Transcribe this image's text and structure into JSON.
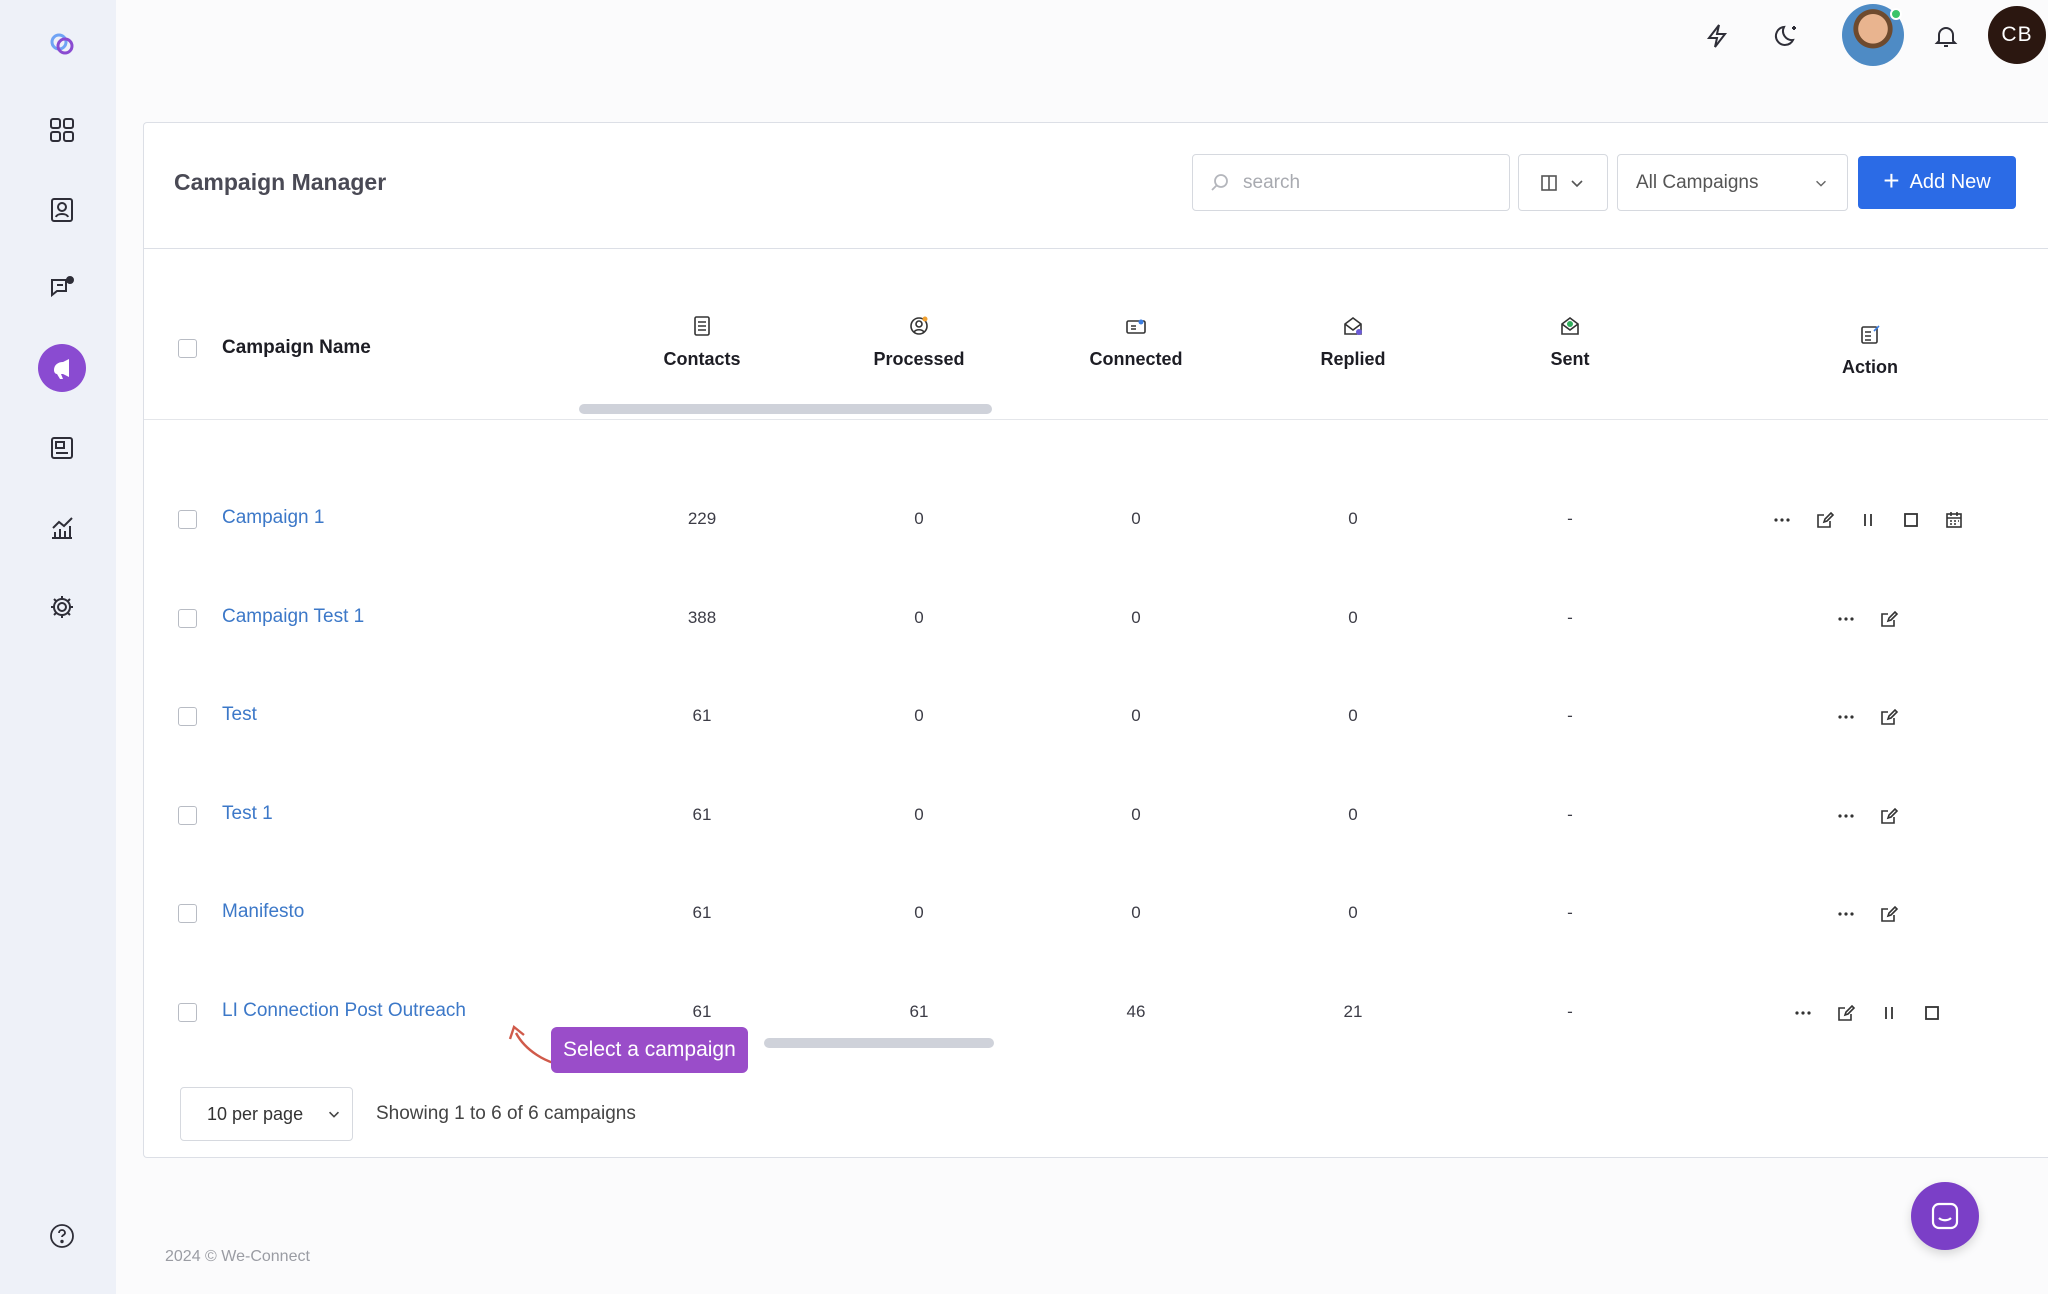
{
  "sidebar": {
    "items": [
      {
        "icon": "logo-icon"
      },
      {
        "icon": "dashboard-icon"
      },
      {
        "icon": "contacts-icon"
      },
      {
        "icon": "messages-icon"
      },
      {
        "icon": "campaigns-icon",
        "active": true
      },
      {
        "icon": "templates-icon"
      },
      {
        "icon": "analytics-icon"
      },
      {
        "icon": "settings-icon"
      },
      {
        "icon": "help-icon"
      }
    ]
  },
  "topbar": {
    "icons": [
      "lightning-icon",
      "dark-mode-icon",
      "avatar",
      "bell-icon"
    ],
    "user_initials": "CB"
  },
  "header": {
    "title": "Campaign Manager",
    "search_placeholder": "search",
    "campaign_filter": "All Campaigns",
    "add_new_label": "Add New"
  },
  "table": {
    "columns": {
      "name": "Campaign Name",
      "contacts": "Contacts",
      "processed": "Processed",
      "connected": "Connected",
      "replied": "Replied",
      "sent": "Sent",
      "action": "Action"
    },
    "rows": [
      {
        "name": "Campaign 1",
        "contacts": "229",
        "processed": "0",
        "connected": "0",
        "replied": "0",
        "sent": "-",
        "actions": [
          "more",
          "edit",
          "pause",
          "stop",
          "schedule"
        ]
      },
      {
        "name": "Campaign Test 1",
        "contacts": "388",
        "processed": "0",
        "connected": "0",
        "replied": "0",
        "sent": "-",
        "actions": [
          "more",
          "edit"
        ]
      },
      {
        "name": "Test",
        "contacts": "61",
        "processed": "0",
        "connected": "0",
        "replied": "0",
        "sent": "-",
        "actions": [
          "more",
          "edit"
        ]
      },
      {
        "name": "Test 1",
        "contacts": "61",
        "processed": "0",
        "connected": "0",
        "replied": "0",
        "sent": "-",
        "actions": [
          "more",
          "edit"
        ]
      },
      {
        "name": "Manifesto",
        "contacts": "61",
        "processed": "0",
        "connected": "0",
        "replied": "0",
        "sent": "-",
        "actions": [
          "more",
          "edit"
        ]
      },
      {
        "name": "LI Connection Post Outreach",
        "contacts": "61",
        "processed": "61",
        "connected": "46",
        "replied": "21",
        "sent": "-",
        "actions": [
          "more",
          "edit",
          "pause",
          "stop"
        ]
      }
    ]
  },
  "tooltip": "Select a campaign",
  "pagination": {
    "per_page": "10 per page",
    "summary": "Showing 1 to 6 of 6 campaigns"
  },
  "footer": "2024 © We-Connect",
  "colors": {
    "accent": "#2b6be6",
    "brand_purple": "#8a4bd1",
    "link": "#3c78c8"
  }
}
